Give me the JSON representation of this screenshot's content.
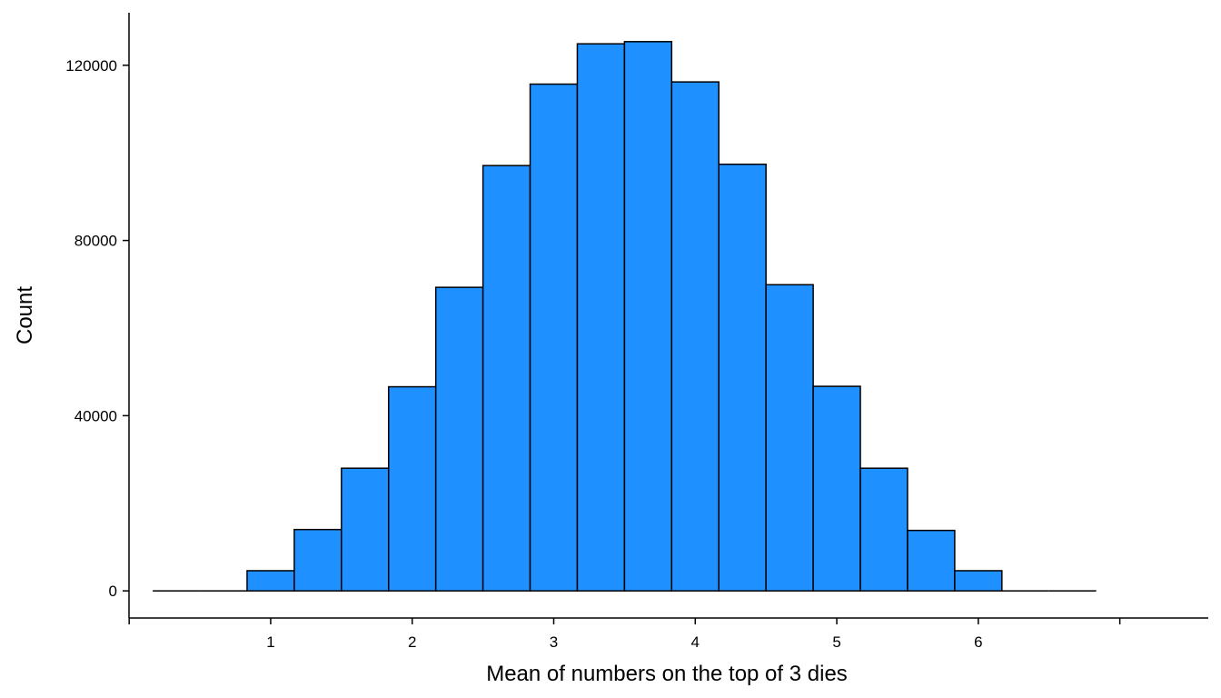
{
  "chart_data": {
    "type": "bar",
    "title": "",
    "xlabel": "Mean of numbers on the top of 3 dies",
    "ylabel": "Count",
    "bin_width": 0.3333,
    "bins": [
      {
        "x": 0.3333,
        "count": 0
      },
      {
        "x": 0.6667,
        "count": 0
      },
      {
        "x": 1.0,
        "count": 4600
      },
      {
        "x": 1.3333,
        "count": 14000
      },
      {
        "x": 1.6667,
        "count": 28000
      },
      {
        "x": 2.0,
        "count": 46600
      },
      {
        "x": 2.3333,
        "count": 69300
      },
      {
        "x": 2.6667,
        "count": 97100
      },
      {
        "x": 3.0,
        "count": 115700
      },
      {
        "x": 3.3333,
        "count": 124900
      },
      {
        "x": 3.6667,
        "count": 125400
      },
      {
        "x": 4.0,
        "count": 116200
      },
      {
        "x": 4.3333,
        "count": 97400
      },
      {
        "x": 4.6667,
        "count": 69900
      },
      {
        "x": 5.0,
        "count": 46700
      },
      {
        "x": 5.3333,
        "count": 28000
      },
      {
        "x": 5.6667,
        "count": 13800
      },
      {
        "x": 6.0,
        "count": 4600
      },
      {
        "x": 6.3333,
        "count": 0
      },
      {
        "x": 6.6667,
        "count": 0
      }
    ],
    "xlim": [
      -0.001,
      7.625
    ],
    "ylim": [
      -6200,
      132000
    ],
    "x_ticks": [
      {
        "value": 0.0,
        "label": ""
      },
      {
        "value": 1,
        "label": "1"
      },
      {
        "value": 2,
        "label": "2"
      },
      {
        "value": 3,
        "label": "3"
      },
      {
        "value": 4,
        "label": "4"
      },
      {
        "value": 5,
        "label": "5"
      },
      {
        "value": 6,
        "label": "6"
      },
      {
        "value": 7.0,
        "label": ""
      }
    ],
    "y_ticks": [
      {
        "value": 0,
        "label": "0"
      },
      {
        "value": 40000,
        "label": "40000"
      },
      {
        "value": 80000,
        "label": "80000"
      },
      {
        "value": 120000,
        "label": "120000"
      }
    ],
    "bar_color": "#1E90FF",
    "bar_outline": "#000000",
    "grid": false,
    "legend": "none"
  }
}
